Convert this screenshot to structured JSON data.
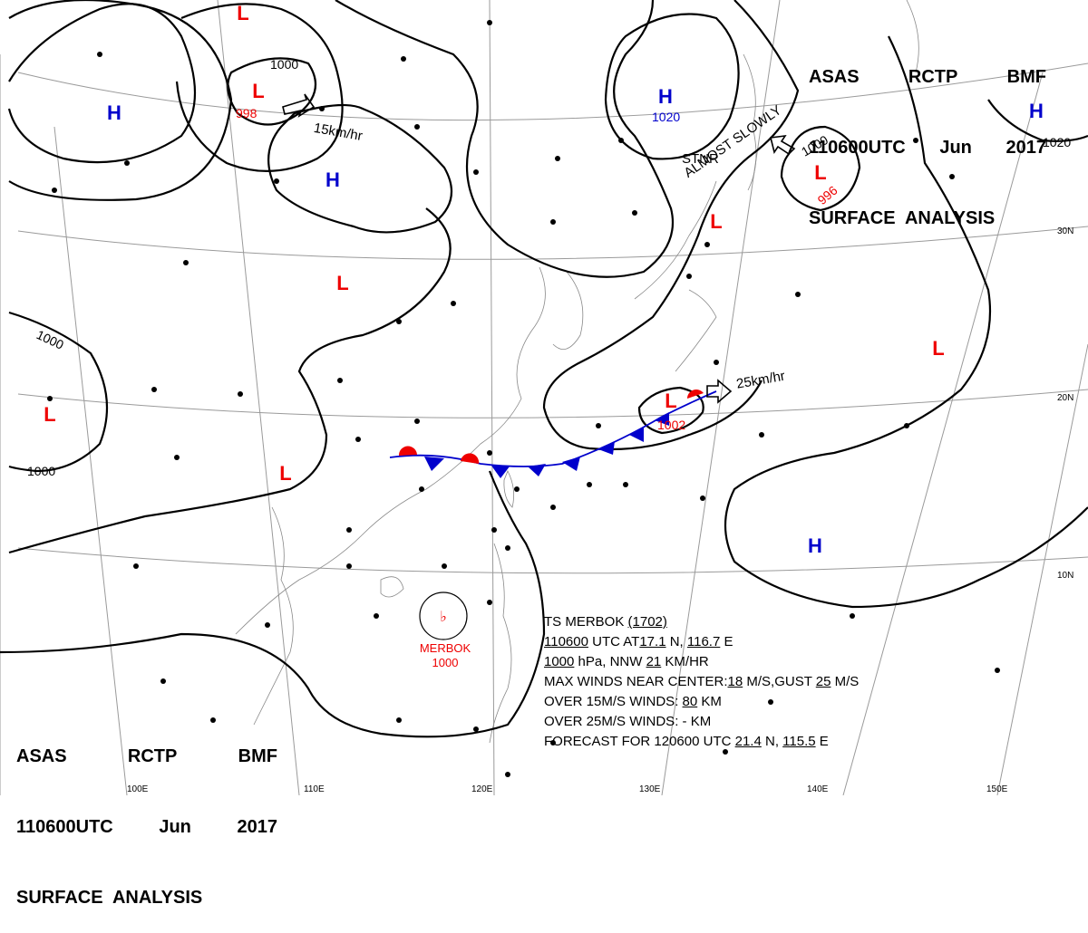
{
  "header_top": {
    "agency": "ASAS",
    "center": "RCTP",
    "bmf": "BMF",
    "time": "110600UTC",
    "month": "Jun",
    "year": "2017",
    "product": "SURFACE  ANALYSIS"
  },
  "header_bottom": {
    "agency": "ASAS",
    "center": "RCTP",
    "bmf": "BMF",
    "time": "110600UTC",
    "month": "Jun",
    "year": "2017",
    "product": "SURFACE  ANALYSIS"
  },
  "storm_box": {
    "line1_prefix": "TS  MERBOK  ",
    "line1_code": "(1702)",
    "line2_time": "110600",
    "line2_mid": " UTC  AT",
    "line2_lat": "17.1",
    "line2_lat_suffix": " N, ",
    "line2_lon": "116.7",
    "line2_lon_suffix": " E",
    "line3_pressure": "1000",
    "line3_mid": " hPa, NNW  ",
    "line3_speed": "21",
    "line3_suffix": " KM/HR",
    "line4_prefix": "MAX WINDS NEAR CENTER:",
    "line4_wind": "18",
    "line4_mid": " M/S,GUST ",
    "line4_gust": "25",
    "line4_suffix": " M/S",
    "line5_prefix": "OVER 15M/S WINDS: ",
    "line5_value": "80",
    "line5_suffix": " KM",
    "line6_prefix": "OVER 25M/S WINDS: - KM",
    "line7_prefix": "FORECAST FOR 120600 UTC ",
    "line7_lat": "21.4",
    "line7_mid": " N, ",
    "line7_lon": "115.5",
    "line7_suffix": " E"
  },
  "typhoon": {
    "name": "MERBOK",
    "pressure": "1000",
    "symbol": "♭"
  },
  "pressure_centers": [
    {
      "type": "H",
      "color": "#0000cc",
      "value": ""
    },
    {
      "type": "H",
      "color": "#0000cc",
      "value": ""
    },
    {
      "type": "H",
      "color": "#0000cc",
      "value": "1020"
    },
    {
      "type": "H",
      "color": "#0000cc",
      "value": ""
    },
    {
      "type": "H",
      "color": "#0000cc",
      "value": ""
    },
    {
      "type": "L",
      "color": "#ee0000",
      "value": ""
    },
    {
      "type": "L",
      "color": "#ee0000",
      "value": "998"
    },
    {
      "type": "L",
      "color": "#ee0000",
      "value": "996"
    },
    {
      "type": "L",
      "color": "#ee0000",
      "value": ""
    },
    {
      "type": "L",
      "color": "#ee0000",
      "value": ""
    },
    {
      "type": "L",
      "color": "#ee0000",
      "value": ""
    },
    {
      "type": "L",
      "color": "#ee0000",
      "value": ""
    },
    {
      "type": "L",
      "color": "#ee0000",
      "value": "1002"
    },
    {
      "type": "L",
      "color": "#ee0000",
      "value": ""
    }
  ],
  "isobar_labels": [
    "1000",
    "1000",
    "1000",
    "1000",
    "1020"
  ],
  "motion_labels": [
    "15km/hr",
    "25km/hr"
  ],
  "stnr_label": "STNR",
  "almost_slowly": "ALMOST SLOWLY",
  "lat_labels": [
    "30N",
    "20N",
    "10N"
  ],
  "lon_labels": [
    "100E",
    "110E",
    "120E",
    "130E",
    "140E",
    "150E"
  ],
  "colors": {
    "high": "#0000cc",
    "low": "#ee0000",
    "front_cold": "#0000cc",
    "front_warm": "#ee0000",
    "isobar": "#000000",
    "grid": "#999999"
  }
}
